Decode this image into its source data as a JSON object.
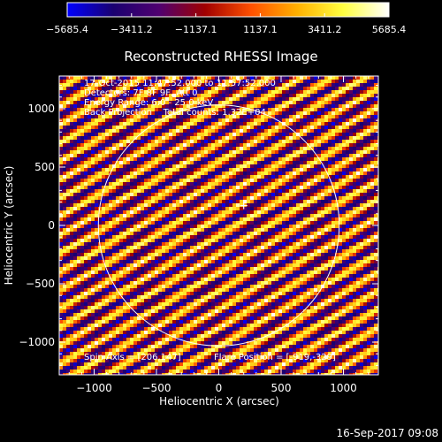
{
  "colorbar": {
    "colors": [
      "#0000ff",
      "#1a0070",
      "#500070",
      "#a00000",
      "#ff5000",
      "#ffb000",
      "#ffff40",
      "#ffffff"
    ],
    "range": [
      -5685.4,
      5685.4
    ],
    "tick_labels": [
      "−5685.4",
      "−3411.2",
      "−1137.1",
      "1137.1",
      "3411.2",
      "5685.4"
    ],
    "tick_values": [
      -5685.4,
      -3411.2,
      -1137.1,
      1137.1,
      3411.2,
      5685.4
    ]
  },
  "annotations": {
    "time_range": "17‐Oct‐2015 11:47:52.000 to 11:57:52.000",
    "detectors": "Detectors: 7F 8F 9F, Att 0",
    "energy_range": "Energy Range: 6.0 ‐ 25.0 keV",
    "method": "Back Projection    Total counts: 1.32E+04",
    "spin_axis": "Spin Axis = [206,147]",
    "flare_position": "Flare Position = [‐919,‐329]"
  },
  "footer": {
    "timestamp": "16‐Sep‐2017 09:08"
  },
  "chart_data": {
    "type": "heatmap",
    "title": "Reconstructed RHESSI Image",
    "xlabel": "Heliocentric X (arcsec)",
    "ylabel": "Heliocentric Y (arcsec)",
    "xlim": [
      -1280,
      1280
    ],
    "ylim": [
      -1280,
      1280
    ],
    "x_ticks": [
      -1000,
      -500,
      0,
      500,
      1000
    ],
    "y_ticks": [
      -1000,
      -500,
      0,
      500,
      1000
    ],
    "x_tick_labels": [
      "−1000",
      "−500",
      "0",
      "500",
      "1000"
    ],
    "y_tick_labels": [
      "−1000",
      "−500",
      "0",
      "500",
      "1000"
    ],
    "solar_disk_radius": 966,
    "center_marker": [
      200,
      170
    ],
    "value_range": [
      -5685.4,
      5685.4
    ],
    "pattern": "diagonal back-projection fringes, slope about 0.58, period about 128 arcsec"
  }
}
